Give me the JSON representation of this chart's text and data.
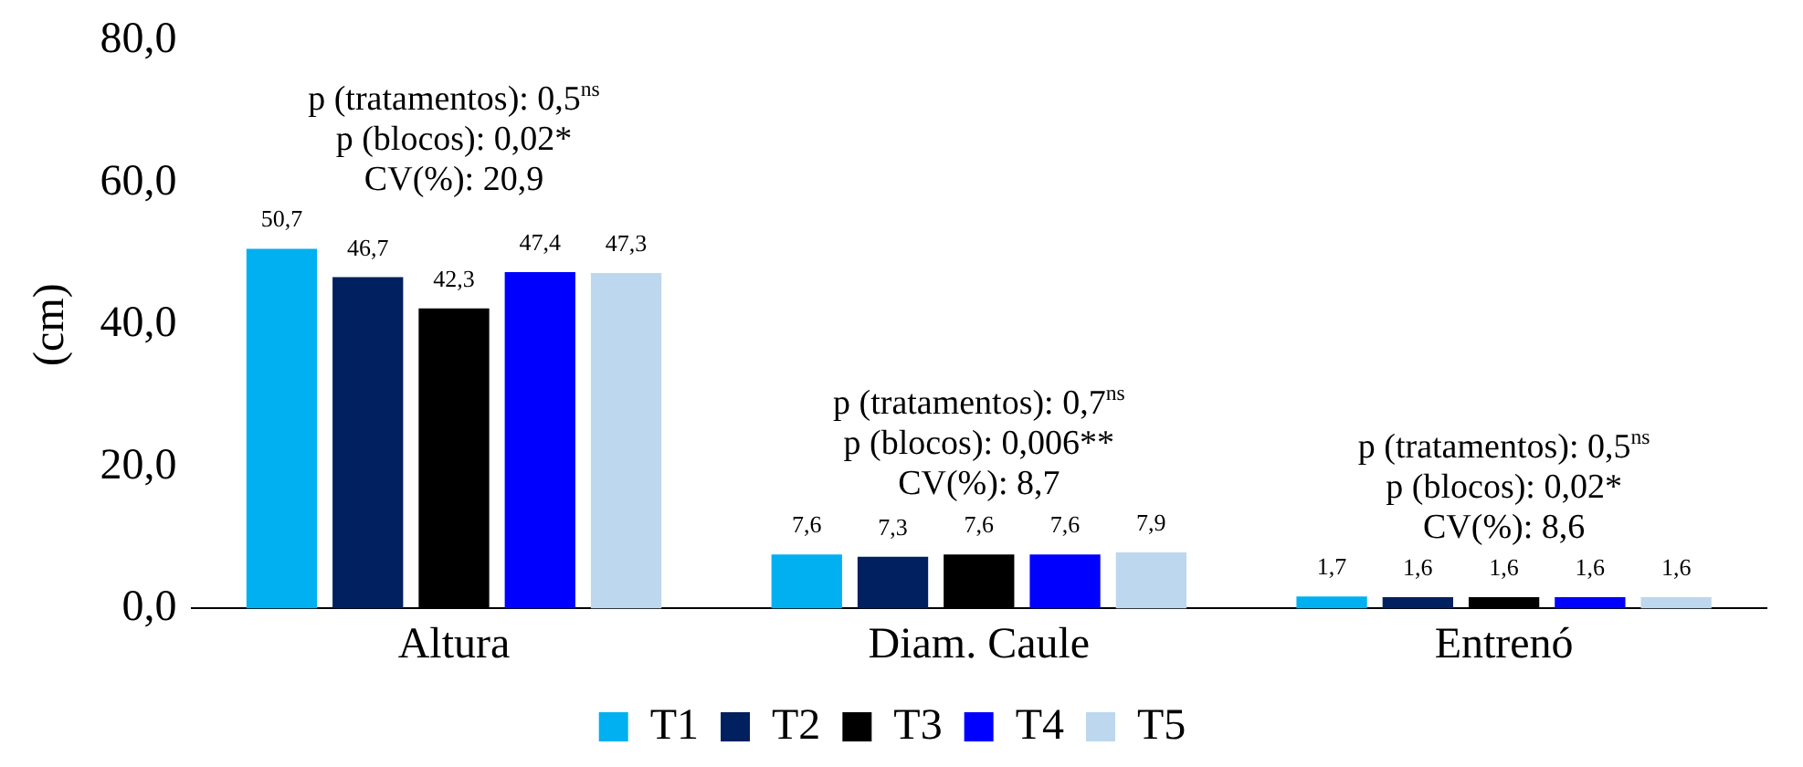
{
  "chart_data": {
    "type": "bar",
    "ylabel": "(cm)",
    "categories": [
      "Altura",
      "Diam. Caule",
      "Entrenó"
    ],
    "series": [
      {
        "name": "T1",
        "color": "#00b0f0",
        "values": [
          50.7,
          7.6,
          1.7
        ],
        "value_labels": [
          "50,7",
          "7,6",
          "1,7"
        ]
      },
      {
        "name": "T2",
        "color": "#002060",
        "values": [
          46.7,
          7.3,
          1.6
        ],
        "value_labels": [
          "46,7",
          "7,3",
          "1,6"
        ]
      },
      {
        "name": "T3",
        "color": "#000000",
        "values": [
          42.3,
          7.6,
          1.6
        ],
        "value_labels": [
          "42,3",
          "7,6",
          "1,6"
        ]
      },
      {
        "name": "T4",
        "color": "#0000ff",
        "values": [
          47.4,
          7.6,
          1.6
        ],
        "value_labels": [
          "47,4",
          "7,6",
          "1,6"
        ]
      },
      {
        "name": "T5",
        "color": "#bdd7ee",
        "values": [
          47.3,
          7.9,
          1.6
        ],
        "value_labels": [
          "47,3",
          "7,9",
          "1,6"
        ]
      }
    ],
    "ylim": [
      0,
      80
    ],
    "yticks": [
      {
        "value": 0,
        "label": "0,0"
      },
      {
        "value": 20,
        "label": "20,0"
      },
      {
        "value": 40,
        "label": "40,0"
      },
      {
        "value": 60,
        "label": "60,0"
      },
      {
        "value": 80,
        "label": "80,0"
      }
    ],
    "grid": false,
    "legend": "bottom",
    "annotations": [
      "p (tratamentos): 0,5$^{ns}$",
      "p (blocos): 0,02*",
      "CV(%): 20,9",
      "p (tratamentos): 0,7$^{ns}$",
      "p (blocos): 0,006**",
      "CV(%): 8,7",
      "p (tratamentos): 0,5$^{ns}$",
      "p (blocos): 0,02*",
      "CV(%): 8,6"
    ]
  }
}
